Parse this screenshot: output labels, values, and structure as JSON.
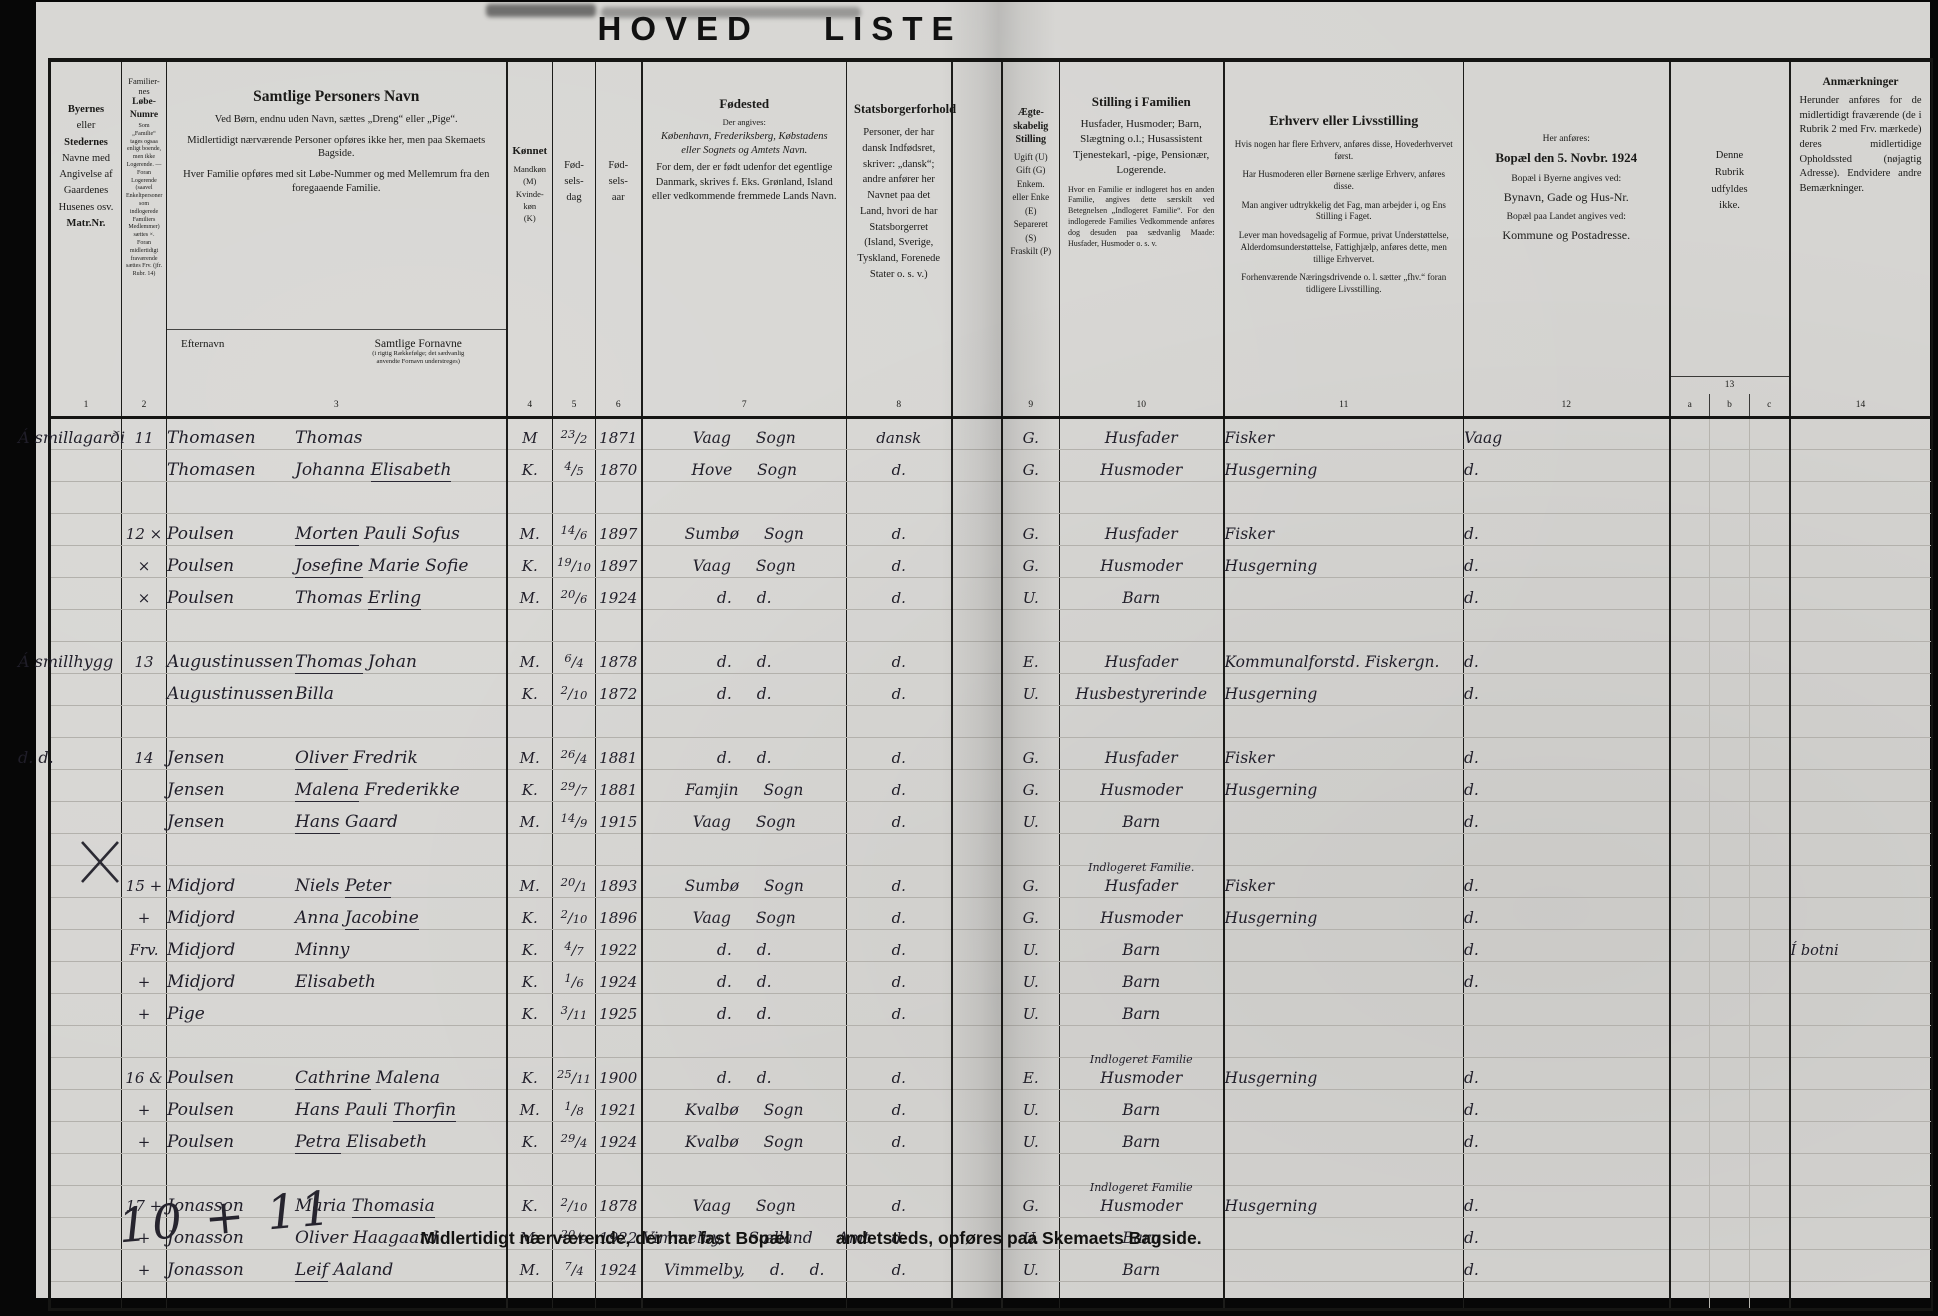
{
  "title": "HOVED LISTE",
  "header": {
    "col1": {
      "b1": "Byernes",
      "m1": "eller",
      "b2": "Stedernes",
      "rest": "Navne med\nAngivelse af\nGaardenes\nHusenes osv.",
      "b3": "Matr.Nr."
    },
    "col2": {
      "t1": "Familier-\nnes",
      "t2": "Løbe-\nNumre",
      "fine": "Som „Familie“ tages ogsaa enligt boende, men ikke Logerende. — Foran Logerende (saavel Enkeltpersoner som indlogerede Familiers Medlemmer) sættes ×. Foran midlertidigt fraværende sættes Frv. (jfr. Rubr. 14)"
    },
    "col3": {
      "t": "Samtlige Personers Navn",
      "p1": "Ved Børn, endnu uden Navn, sættes „Dreng“ eller „Pige“.",
      "p2": "Midlertidigt nærværende Personer opføres ikke her, men paa Skemaets Bagside.",
      "p3": "Hver Familie opføres med sit Løbe-Nummer og med Mellemrum fra den foregaaende Familie.",
      "sub1": "Efternavn",
      "sub2": "Samtlige Fornavne",
      "sub2note": "(i rigtig Rækkefølge; det sædvanlig\nanvendte Fornavn understreges)"
    },
    "col4": {
      "t": "Kønnet",
      "l": "Mandkøn\n(M)\nKvinde-\nkøn\n(K)"
    },
    "col5": "Fød-\nsels-\ndag",
    "col6": "Fød-\nsels-\naar",
    "col7": {
      "t": "Fødested",
      "p1": "Der angives:",
      "p2": "København, Frederiksberg, Købstadens eller Sognets og Amtets Navn.",
      "p3": "For dem, der er født udenfor det egentlige Danmark, skrives f. Eks. Grønland, Island eller vedkommende fremmede Lands Navn."
    },
    "col8": {
      "t": "Statsborgerforhold",
      "p1": "Personer, der har dansk Indfødsret, skriver: „dansk“; andre anfører her Navnet paa det Land, hvori de har Statsborgerret (Island, Sverige, Tyskland, Forenede Stater o. s. v.)"
    },
    "col9": {
      "t": "Ægte-\nskabelig\nStilling",
      "opts": "Ugift (U)\nGift (G)\nEnkem.\neller Enke\n(E)\nSepareret\n(S)\nFraskilt (P)"
    },
    "col10": {
      "t": "Stilling i Familien",
      "p1": "Husfader, Husmoder; Barn, Slægtning o.l.; Husassistent Tjenestekarl, -pige, Pensionær, Logerende.",
      "p2": "Hvor en Familie er indlogeret hos en anden Familie, angives dette særskilt ved Betegnelsen „Indlogeret Familie“. For den indlogerede Families Vedkommende anføres dog desuden paa sædvanlig Maade: Husfader, Husmoder o. s. v."
    },
    "col11": {
      "t": "Erhverv eller Livsstilling",
      "p1": "Hvis nogen har flere Erhverv, anføres disse, Hovederhvervet først.",
      "p2": "Har Husmoderen eller Børnene særlige Erhverv, anføres disse.",
      "p3": "Man angiver udtrykkelig det Fag, man arbejder i, og Ens Stilling i Faget.",
      "p4": "Lever man hovedsagelig af Formue, privat Understøttelse, Alderdomsunderstøttelse, Fattighjælp, anføres dette, men tillige Erhvervet.",
      "p5": "Forhenværende Næringsdrivende o. l. sætter „fhv.“ foran tidligere Livsstilling."
    },
    "col12": {
      "p1": "Her anføres:",
      "t": "Bopæl den 5. Novbr. 1924",
      "p2": "Bopæl i Byerne angives ved:",
      "p3": "Bynavn, Gade og Hus-Nr.",
      "p4": "Bopæl paa Landet angives ved:",
      "p5": "Kommune og Postadresse."
    },
    "col13": {
      "t": "Denne\nRubrik\nudfyldes\nikke.",
      "n": "13"
    },
    "col14": {
      "t": "Anmærkninger",
      "p1": "Herunder anføres for de midlertidigt fraværende (de i Rubrik 2 med Frv. mærkede) deres midlertidige Opholdssted (nøjagtig Adresse). Endvidere andre Bemærkninger."
    },
    "numbers": {
      "n1": "1",
      "n2": "2",
      "n3": "3",
      "n4": "4",
      "n5": "5",
      "n6": "6",
      "n7": "7",
      "n8": "8",
      "n9": "9",
      "n10": "10",
      "n11": "11",
      "n12": "12",
      "a": "a",
      "b": "b",
      "c": "c",
      "n14": "14"
    }
  },
  "families": [
    {
      "rows": [
        {
          "place": "Á smillagarði",
          "fam": "11",
          "sur": "Thomasen",
          "giv": "Thomas",
          "u": "",
          "sex": "M",
          "day": "23/2",
          "yr": "1871",
          "birth": "Vaag Sogn",
          "cit": "dansk",
          "mar": "G.",
          "pos": "Husfader",
          "occ": "Fisker",
          "res": "Vaag",
          "rem": ""
        },
        {
          "fam": "",
          "sur": "Thomasen",
          "giv": "Johanna Elisabeth",
          "u": "Elisabeth",
          "sex": "K.",
          "day": "4/5",
          "yr": "1870",
          "birth": "Hove Sogn",
          "cit": "d.",
          "mar": "G.",
          "pos": "Husmoder",
          "occ": "Husgerning",
          "res": "d.",
          "rem": ""
        }
      ]
    },
    {
      "rows": [
        {
          "fam": "12 ×",
          "sur": "Poulsen",
          "giv": "Morten Pauli Sofus",
          "u": "Morten",
          "sex": "M.",
          "day": "14/6",
          "yr": "1897",
          "birth": "Sumbø Sogn",
          "cit": "d.",
          "mar": "G.",
          "pos": "Husfader",
          "occ": "Fisker",
          "res": "d.",
          "rem": ""
        },
        {
          "fam": "×",
          "sur": "Poulsen",
          "giv": "Josefine Marie Sofie",
          "u": "Josefine",
          "sex": "K.",
          "day": "19/10",
          "yr": "1897",
          "birth": "Vaag Sogn",
          "cit": "d.",
          "mar": "G.",
          "pos": "Husmoder",
          "occ": "Husgerning",
          "res": "d.",
          "rem": ""
        },
        {
          "fam": "×",
          "sur": "Poulsen",
          "giv": "Thomas Erling",
          "u": "Erling",
          "sex": "M.",
          "day": "20/6",
          "yr": "1924",
          "birth": "d. d.",
          "cit": "d.",
          "mar": "U.",
          "pos": "Barn",
          "occ": "",
          "res": "d.",
          "rem": ""
        }
      ]
    },
    {
      "rows": [
        {
          "place": "Á smillhygg",
          "fam": "13",
          "sur": "Augustinussen",
          "giv": "Thomas Johan",
          "u": "Thomas",
          "sex": "M.",
          "day": "6/4",
          "yr": "1878",
          "birth": "d. d.",
          "cit": "d.",
          "mar": "E.",
          "pos": "Husfader",
          "occ": "Kommunalforstd. Fiskergn.",
          "res": "d.",
          "rem": ""
        },
        {
          "fam": "",
          "sur": "Augustinussen",
          "giv": "Billa",
          "u": "",
          "sex": "K.",
          "day": "2/10",
          "yr": "1872",
          "birth": "d. d.",
          "cit": "d.",
          "mar": "U.",
          "pos": "Husbestyrerinde",
          "occ": "Husgerning",
          "res": "d.",
          "rem": ""
        }
      ]
    },
    {
      "rows": [
        {
          "place": "d.  d.",
          "fam": "14",
          "sur": "Jensen",
          "giv": "Oliver Fredrik",
          "u": "Oliver",
          "sex": "M.",
          "day": "26/4",
          "yr": "1881",
          "birth": "d. d.",
          "cit": "d.",
          "mar": "G.",
          "pos": "Husfader",
          "occ": "Fisker",
          "res": "d.",
          "rem": ""
        },
        {
          "fam": "",
          "sur": "Jensen",
          "giv": "Malena Frederikke",
          "u": "Malena",
          "sex": "K.",
          "day": "29/7",
          "yr": "1881",
          "birth": "Famjin Sogn",
          "cit": "d.",
          "mar": "G.",
          "pos": "Husmoder",
          "occ": "Husgerning",
          "res": "d.",
          "rem": ""
        },
        {
          "fam": "",
          "sur": "Jensen",
          "giv": "Hans Gaard",
          "u": "Hans",
          "sex": "M.",
          "day": "14/9",
          "yr": "1915",
          "birth": "Vaag Sogn",
          "cit": "d.",
          "mar": "U.",
          "pos": "Barn",
          "occ": "",
          "res": "d.",
          "rem": ""
        }
      ]
    },
    {
      "rows": [
        {
          "fam": "15 +",
          "sur": "Midjord",
          "giv": "Niels Peter",
          "u": "Peter",
          "sex": "M.",
          "day": "20/1",
          "yr": "1893",
          "birth": "Sumbø Sogn",
          "cit": "d.",
          "mar": "G.",
          "pos": "Husfader",
          "note": "Indlogeret Familie.",
          "occ": "Fisker",
          "res": "d.",
          "rem": ""
        },
        {
          "fam": "+",
          "sur": "Midjord",
          "giv": "Anna Jacobine",
          "u": "Jacobine",
          "sex": "K.",
          "day": "2/10",
          "yr": "1896",
          "birth": "Vaag Sogn",
          "cit": "d.",
          "mar": "G.",
          "pos": "Husmoder",
          "occ": "Husgerning",
          "res": "d.",
          "rem": ""
        },
        {
          "fam": "Frv.",
          "sur": "Midjord",
          "giv": "Minny",
          "u": "",
          "sex": "K.",
          "day": "4/7",
          "yr": "1922",
          "birth": "d. d.",
          "cit": "d.",
          "mar": "U.",
          "pos": "Barn",
          "occ": "",
          "res": "d.",
          "rem": "Í botni"
        },
        {
          "fam": "+",
          "sur": "Midjord",
          "giv": "Elisabeth",
          "u": "",
          "sex": "K.",
          "day": "1/6",
          "yr": "1924",
          "birth": "d. d.",
          "cit": "d.",
          "mar": "U.",
          "pos": "Barn",
          "occ": "",
          "res": "d.",
          "rem": ""
        },
        {
          "fam": "+",
          "sur": "",
          "giv": "Pige",
          "u": "",
          "sex": "K.",
          "day": "3/11",
          "yr": "1925",
          "birth": "d. d.",
          "cit": "d.",
          "mar": "U.",
          "pos": "Barn",
          "occ": "",
          "res": "",
          "rem": ""
        }
      ]
    },
    {
      "rows": [
        {
          "fam": "16 &",
          "sur": "Poulsen",
          "giv": "Cathrine Malena",
          "u": "Cathrine",
          "sex": "K.",
          "day": "25/11",
          "yr": "1900",
          "birth": "d. d.",
          "cit": "d.",
          "mar": "E.",
          "pos": "Husmoder",
          "note": "Indlogeret Familie",
          "occ": "Husgerning",
          "res": "d.",
          "rem": ""
        },
        {
          "fam": "+",
          "sur": "Poulsen",
          "giv": "Hans Pauli Thorfin",
          "u": "Thorfin",
          "sex": "M.",
          "day": "1/8",
          "yr": "1921",
          "birth": "Kvalbø Sogn",
          "cit": "d.",
          "mar": "U.",
          "pos": "Barn",
          "occ": "",
          "res": "d.",
          "rem": ""
        },
        {
          "fam": "+",
          "sur": "Poulsen",
          "giv": "Petra Elisabeth",
          "u": "Petra",
          "sex": "K.",
          "day": "29/4",
          "yr": "1924",
          "birth": "Kvalbø Sogn",
          "cit": "d.",
          "mar": "U.",
          "pos": "Barn",
          "occ": "",
          "res": "d.",
          "rem": ""
        }
      ]
    },
    {
      "rows": [
        {
          "fam": "17 +",
          "sur": "Jonasson",
          "giv": "Maria Thomasia",
          "u": "Thomasia",
          "sex": "K.",
          "day": "2/10",
          "yr": "1878",
          "birth": "Vaag Sogn",
          "cit": "d.",
          "mar": "G.",
          "pos": "Husmoder",
          "note": "Indlogeret Familie",
          "occ": "Husgerning",
          "res": "d.",
          "rem": ""
        },
        {
          "fam": "+",
          "sur": "Jonasson",
          "giv": "Oliver Haagaard",
          "u": "",
          "sex": "M.",
          "day": "20/9",
          "yr": "1922",
          "birth": "Vimmelby, Sælland Amt",
          "cit": "d.",
          "mar": "U.",
          "pos": "Barn",
          "occ": "",
          "res": "d.",
          "rem": ""
        },
        {
          "fam": "+",
          "sur": "Jonasson",
          "giv": "Leif Aaland",
          "u": "Leif",
          "sex": "M.",
          "day": "7/4",
          "yr": "1924",
          "birth": "Vimmelby, d. d.",
          "cit": "d.",
          "mar": "U.",
          "pos": "Barn",
          "occ": "",
          "res": "d.",
          "rem": ""
        }
      ]
    }
  ],
  "footer": {
    "note1": "Midlertidigt nærværende, der har fast Bopæl",
    "note2": "andetsteds, opføres paa Skemaets Bagside.",
    "handwritten": "10 + 11"
  }
}
